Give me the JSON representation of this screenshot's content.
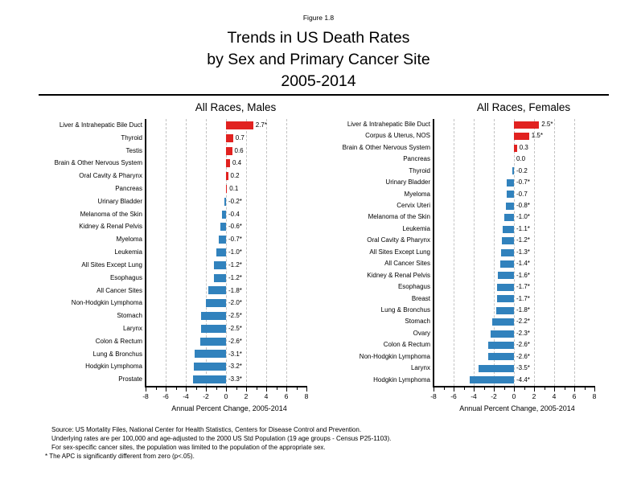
{
  "figure_label": "Figure 1.8",
  "title_lines": [
    "Trends in US Death Rates",
    "by Sex and Primary Cancer Site",
    "2005-2014"
  ],
  "colors": {
    "positive_bar": "#e12220",
    "negative_bar": "#3182bd",
    "gridline": "#c2c2c2",
    "axis": "#000000"
  },
  "footnotes": [
    "Source: US Mortality Files, National Center for Health Statistics, Centers for Disease Control and Prevention.",
    "Underlying rates are per 100,000 and age-adjusted to the 2000 US Std Population (19 age groups - Census P25-1103).",
    "For sex-specific cancer sites, the population was limited to the population of the appropriate sex.",
    "* The APC is significantly different from zero (p<.05)."
  ],
  "chart_data": [
    {
      "type": "bar",
      "orientation": "horizontal",
      "title": "All Races, Males",
      "xlabel": "Annual Percent Change, 2005-2014",
      "xlim": [
        -8,
        8
      ],
      "x_ticks": [
        -8,
        -6,
        -4,
        -2,
        0,
        2,
        4,
        6,
        8
      ],
      "gridlines": [
        -6,
        -4,
        -2,
        0,
        2,
        4,
        6
      ],
      "grid": true,
      "categories": [
        "Liver & Intrahepatic Bile Duct",
        "Thyroid",
        "Testis",
        "Brain & Other Nervous System",
        "Oral Cavity & Pharynx",
        "Pancreas",
        "Urinary Bladder",
        "Melanoma of the Skin",
        "Kidney & Renal Pelvis",
        "Myeloma",
        "Leukemia",
        "All Sites Except Lung",
        "Esophagus",
        "All Cancer Sites",
        "Non-Hodgkin Lymphoma",
        "Stomach",
        "Larynx",
        "Colon & Rectum",
        "Lung & Bronchus",
        "Hodgkin Lymphoma",
        "Prostate"
      ],
      "values": [
        2.7,
        0.7,
        0.6,
        0.4,
        0.2,
        0.1,
        -0.2,
        -0.4,
        -0.6,
        -0.7,
        -1.0,
        -1.2,
        -1.2,
        -1.8,
        -2.0,
        -2.5,
        -2.5,
        -2.6,
        -3.1,
        -3.2,
        -3.3
      ],
      "labels": [
        "2.7*",
        "0.7",
        "0.6",
        "0.4",
        "0.2",
        "0.1",
        "-0.2*",
        "-0.4",
        "-0.6*",
        "-0.7*",
        "-1.0*",
        "-1.2*",
        "-1.2*",
        "-1.8*",
        "-2.0*",
        "-2.5*",
        "-2.5*",
        "-2.6*",
        "-3.1*",
        "-3.2*",
        "-3.3*"
      ]
    },
    {
      "type": "bar",
      "orientation": "horizontal",
      "title": "All Races, Females",
      "xlabel": "Annual Percent Change, 2005-2014",
      "xlim": [
        -8,
        8
      ],
      "x_ticks": [
        -8,
        -6,
        -4,
        -2,
        0,
        2,
        4,
        6,
        8
      ],
      "gridlines": [
        -6,
        -4,
        -2,
        0,
        2,
        4,
        6
      ],
      "grid": true,
      "categories": [
        "Liver & Intrahepatic Bile Duct",
        "Corpus & Uterus, NOS",
        "Brain & Other Nervous System",
        "Pancreas",
        "Thyroid",
        "Urinary Bladder",
        "Myeloma",
        "Cervix Uteri",
        "Melanoma of the Skin",
        "Leukemia",
        "Oral Cavity & Pharynx",
        "All Sites Except Lung",
        "All Cancer Sites",
        "Kidney & Renal Pelvis",
        "Esophagus",
        "Breast",
        "Lung & Bronchus",
        "Stomach",
        "Ovary",
        "Colon & Rectum",
        "Non-Hodgkin Lymphoma",
        "Larynx",
        "Hodgkin Lymphoma"
      ],
      "values": [
        2.5,
        1.5,
        0.3,
        0.0,
        -0.2,
        -0.7,
        -0.7,
        -0.8,
        -1.0,
        -1.1,
        -1.2,
        -1.3,
        -1.4,
        -1.6,
        -1.7,
        -1.7,
        -1.8,
        -2.2,
        -2.3,
        -2.6,
        -2.6,
        -3.5,
        -4.4
      ],
      "labels": [
        "2.5*",
        "1.5*",
        "0.3",
        "0.0",
        "-0.2",
        "-0.7*",
        "-0.7",
        "-0.8*",
        "-1.0*",
        "-1.1*",
        "-1.2*",
        "-1.3*",
        "-1.4*",
        "-1.6*",
        "-1.7*",
        "-1.7*",
        "-1.8*",
        "-2.2*",
        "-2.3*",
        "-2.6*",
        "-2.6*",
        "-3.5*",
        "-4.4*"
      ]
    }
  ]
}
